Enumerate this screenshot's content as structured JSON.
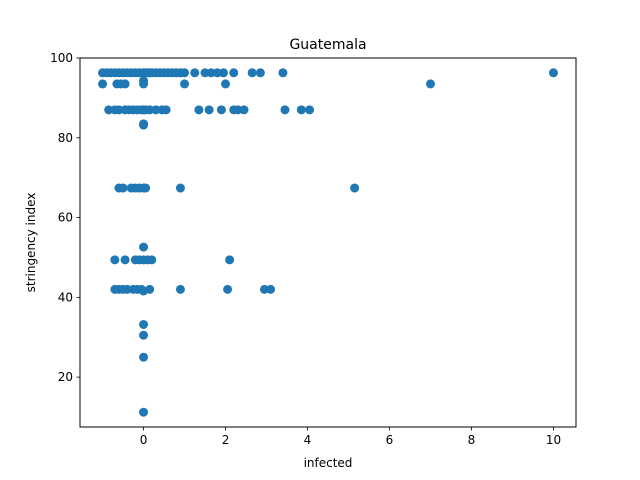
{
  "chart_data": {
    "type": "scatter",
    "title": "Guatemala",
    "xlabel": "infected",
    "ylabel": "stringency index",
    "xlim": [
      -1.55,
      10.55
    ],
    "ylim": [
      7.5,
      100
    ],
    "xticks": [
      0,
      2,
      4,
      6,
      8,
      10
    ],
    "yticks": [
      20,
      40,
      60,
      80,
      100
    ],
    "grid": false,
    "marker_color": "#1f77b4",
    "points": [
      {
        "x": -1.0,
        "y": 96.3
      },
      {
        "x": -0.9,
        "y": 96.3
      },
      {
        "x": -0.8,
        "y": 96.3
      },
      {
        "x": -0.7,
        "y": 96.3
      },
      {
        "x": -0.6,
        "y": 96.3
      },
      {
        "x": -0.5,
        "y": 96.3
      },
      {
        "x": -0.4,
        "y": 96.3
      },
      {
        "x": -0.3,
        "y": 96.3
      },
      {
        "x": -0.2,
        "y": 96.3
      },
      {
        "x": -0.1,
        "y": 96.3
      },
      {
        "x": 0.0,
        "y": 96.3
      },
      {
        "x": 0.05,
        "y": 96.3
      },
      {
        "x": 0.1,
        "y": 96.3
      },
      {
        "x": 0.15,
        "y": 96.3
      },
      {
        "x": 0.2,
        "y": 96.3
      },
      {
        "x": 0.3,
        "y": 96.3
      },
      {
        "x": 0.4,
        "y": 96.3
      },
      {
        "x": 0.5,
        "y": 96.3
      },
      {
        "x": 0.6,
        "y": 96.3
      },
      {
        "x": 0.7,
        "y": 96.3
      },
      {
        "x": 0.8,
        "y": 96.3
      },
      {
        "x": 0.9,
        "y": 96.3
      },
      {
        "x": 1.0,
        "y": 96.3
      },
      {
        "x": 1.25,
        "y": 96.3
      },
      {
        "x": 1.5,
        "y": 96.3
      },
      {
        "x": 1.65,
        "y": 96.3
      },
      {
        "x": 1.8,
        "y": 96.3
      },
      {
        "x": 1.95,
        "y": 96.3
      },
      {
        "x": 2.2,
        "y": 96.3
      },
      {
        "x": 2.65,
        "y": 96.3
      },
      {
        "x": 2.85,
        "y": 96.3
      },
      {
        "x": 3.4,
        "y": 96.3
      },
      {
        "x": 10.0,
        "y": 96.3
      },
      {
        "x": -1.0,
        "y": 93.5
      },
      {
        "x": -0.65,
        "y": 93.5
      },
      {
        "x": -0.55,
        "y": 93.5
      },
      {
        "x": -0.45,
        "y": 93.5
      },
      {
        "x": 0.0,
        "y": 93.5
      },
      {
        "x": 0.0,
        "y": 94.3
      },
      {
        "x": 1.0,
        "y": 93.5
      },
      {
        "x": 2.0,
        "y": 93.5
      },
      {
        "x": 7.0,
        "y": 93.5
      },
      {
        "x": -0.85,
        "y": 87.0
      },
      {
        "x": -0.7,
        "y": 87.0
      },
      {
        "x": -0.6,
        "y": 87.0
      },
      {
        "x": -0.45,
        "y": 87.0
      },
      {
        "x": -0.35,
        "y": 87.0
      },
      {
        "x": -0.25,
        "y": 87.0
      },
      {
        "x": -0.15,
        "y": 87.0
      },
      {
        "x": -0.05,
        "y": 87.0
      },
      {
        "x": 0.0,
        "y": 87.0
      },
      {
        "x": 0.05,
        "y": 87.0
      },
      {
        "x": 0.15,
        "y": 87.0
      },
      {
        "x": 0.3,
        "y": 87.0
      },
      {
        "x": 0.45,
        "y": 87.0
      },
      {
        "x": 0.55,
        "y": 87.0
      },
      {
        "x": 1.35,
        "y": 87.0
      },
      {
        "x": 1.6,
        "y": 87.0
      },
      {
        "x": 1.9,
        "y": 87.0
      },
      {
        "x": 2.2,
        "y": 87.0
      },
      {
        "x": 2.3,
        "y": 87.0
      },
      {
        "x": 2.45,
        "y": 87.0
      },
      {
        "x": 3.45,
        "y": 87.0
      },
      {
        "x": 3.85,
        "y": 87.0
      },
      {
        "x": 4.05,
        "y": 87.0
      },
      {
        "x": 0.0,
        "y": 83.2
      },
      {
        "x": 0.0,
        "y": 83.5
      },
      {
        "x": -0.6,
        "y": 67.4
      },
      {
        "x": -0.5,
        "y": 67.4
      },
      {
        "x": -0.3,
        "y": 67.4
      },
      {
        "x": -0.2,
        "y": 67.4
      },
      {
        "x": -0.1,
        "y": 67.4
      },
      {
        "x": 0.0,
        "y": 67.4
      },
      {
        "x": 0.05,
        "y": 67.4
      },
      {
        "x": 0.9,
        "y": 67.4
      },
      {
        "x": 5.15,
        "y": 67.4
      },
      {
        "x": 0.0,
        "y": 52.6
      },
      {
        "x": -0.7,
        "y": 49.4
      },
      {
        "x": -0.45,
        "y": 49.4
      },
      {
        "x": -0.2,
        "y": 49.4
      },
      {
        "x": -0.1,
        "y": 49.4
      },
      {
        "x": 0.0,
        "y": 49.4
      },
      {
        "x": 0.1,
        "y": 49.4
      },
      {
        "x": 0.2,
        "y": 49.4
      },
      {
        "x": 2.1,
        "y": 49.4
      },
      {
        "x": -0.7,
        "y": 42.0
      },
      {
        "x": -0.6,
        "y": 42.0
      },
      {
        "x": -0.5,
        "y": 42.0
      },
      {
        "x": -0.4,
        "y": 42.0
      },
      {
        "x": -0.25,
        "y": 42.0
      },
      {
        "x": -0.15,
        "y": 42.0
      },
      {
        "x": -0.05,
        "y": 42.0
      },
      {
        "x": 0.0,
        "y": 41.6
      },
      {
        "x": 0.15,
        "y": 42.0
      },
      {
        "x": 0.9,
        "y": 42.0
      },
      {
        "x": 2.05,
        "y": 42.0
      },
      {
        "x": 2.95,
        "y": 42.0
      },
      {
        "x": 3.1,
        "y": 42.0
      },
      {
        "x": 0.0,
        "y": 33.2
      },
      {
        "x": 0.0,
        "y": 30.5
      },
      {
        "x": 0.0,
        "y": 25.0
      },
      {
        "x": 0.0,
        "y": 11.2
      }
    ]
  }
}
